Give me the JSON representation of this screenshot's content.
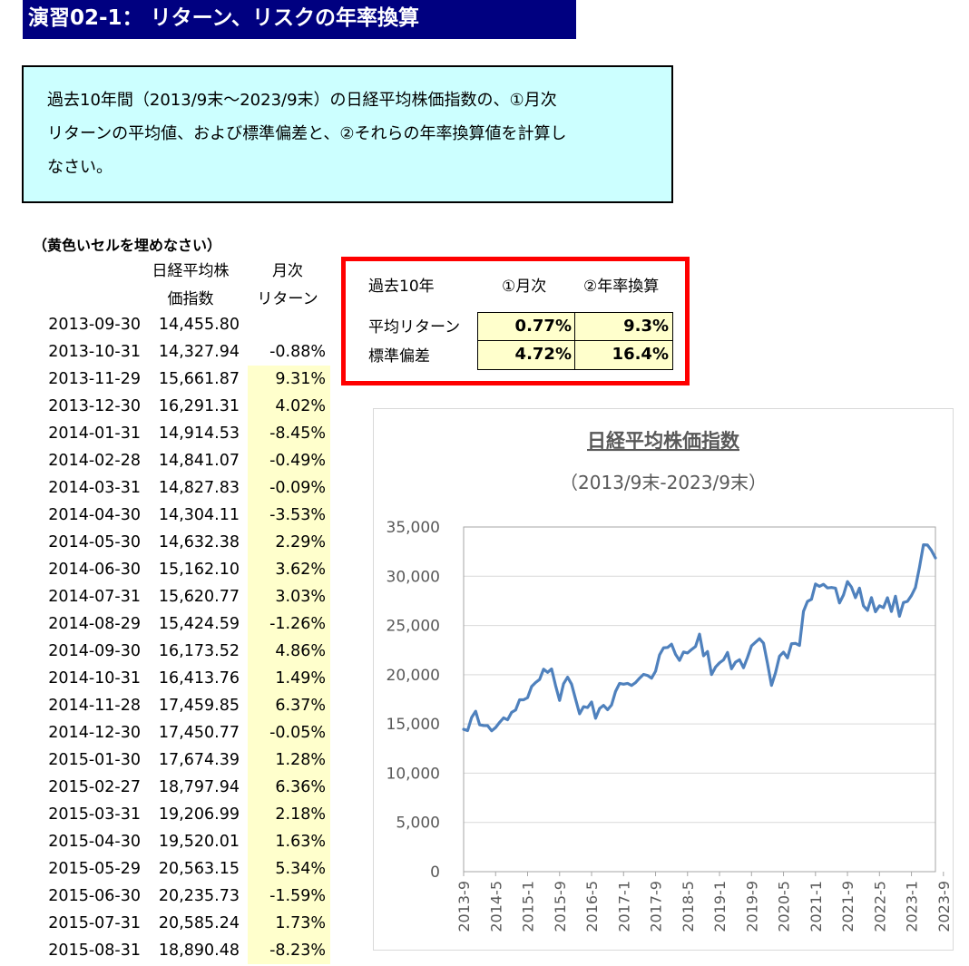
{
  "title": "演習02-1： リターン、リスクの年率換算",
  "instruction": {
    "line1": "過去10年間（2013/9末～2023/9末）の日経平均株価指数の、①月次",
    "line2": "リターンの平均値、および標準偏差と、②それらの年率換算値を計算し",
    "line3": "なさい。"
  },
  "note": "（黄色いセルを埋めなさい）",
  "table": {
    "header_price_1": "日経平均株",
    "header_price_2": "価指数",
    "header_return_1": "月次",
    "header_return_2": "リターン",
    "rows": [
      {
        "date": "2013-09-30",
        "price": "14,455.80",
        "ret": ""
      },
      {
        "date": "2013-10-31",
        "price": "14,327.94",
        "ret": "-0.88%"
      },
      {
        "date": "2013-11-29",
        "price": "15,661.87",
        "ret": "9.31%"
      },
      {
        "date": "2013-12-30",
        "price": "16,291.31",
        "ret": "4.02%"
      },
      {
        "date": "2014-01-31",
        "price": "14,914.53",
        "ret": "-8.45%"
      },
      {
        "date": "2014-02-28",
        "price": "14,841.07",
        "ret": "-0.49%"
      },
      {
        "date": "2014-03-31",
        "price": "14,827.83",
        "ret": "-0.09%"
      },
      {
        "date": "2014-04-30",
        "price": "14,304.11",
        "ret": "-3.53%"
      },
      {
        "date": "2014-05-30",
        "price": "14,632.38",
        "ret": "2.29%"
      },
      {
        "date": "2014-06-30",
        "price": "15,162.10",
        "ret": "3.62%"
      },
      {
        "date": "2014-07-31",
        "price": "15,620.77",
        "ret": "3.03%"
      },
      {
        "date": "2014-08-29",
        "price": "15,424.59",
        "ret": "-1.26%"
      },
      {
        "date": "2014-09-30",
        "price": "16,173.52",
        "ret": "4.86%"
      },
      {
        "date": "2014-10-31",
        "price": "16,413.76",
        "ret": "1.49%"
      },
      {
        "date": "2014-11-28",
        "price": "17,459.85",
        "ret": "6.37%"
      },
      {
        "date": "2014-12-30",
        "price": "17,450.77",
        "ret": "-0.05%"
      },
      {
        "date": "2015-01-30",
        "price": "17,674.39",
        "ret": "1.28%"
      },
      {
        "date": "2015-02-27",
        "price": "18,797.94",
        "ret": "6.36%"
      },
      {
        "date": "2015-03-31",
        "price": "19,206.99",
        "ret": "2.18%"
      },
      {
        "date": "2015-04-30",
        "price": "19,520.01",
        "ret": "1.63%"
      },
      {
        "date": "2015-05-29",
        "price": "20,563.15",
        "ret": "5.34%"
      },
      {
        "date": "2015-06-30",
        "price": "20,235.73",
        "ret": "-1.59%"
      },
      {
        "date": "2015-07-31",
        "price": "20,585.24",
        "ret": "1.73%"
      },
      {
        "date": "2015-08-31",
        "price": "18,890.48",
        "ret": "-8.23%"
      }
    ]
  },
  "summary": {
    "corner": "過去10年",
    "col_monthly": "①月次",
    "col_annual": "②年率換算",
    "row_return": "平均リターン",
    "row_std": "標準偏差",
    "return_monthly": "0.77%",
    "return_annual": "9.3%",
    "std_monthly": "4.72%",
    "std_annual": "16.4%"
  },
  "chart_data": {
    "type": "line",
    "title": "日経平均株価指数",
    "subtitle": "（2013/9末-2023/9末）",
    "ylim": [
      0,
      35000
    ],
    "y_ticks": [
      "0",
      "5,000",
      "10,000",
      "15,000",
      "20,000",
      "25,000",
      "30,000",
      "35,000"
    ],
    "x_tick_labels": [
      "2013-9",
      "2014-5",
      "2015-1",
      "2015-9",
      "2016-5",
      "2017-1",
      "2017-9",
      "2018-5",
      "2019-1",
      "2019-9",
      "2020-5",
      "2021-1",
      "2021-9",
      "2022-5",
      "2023-1",
      "2023-9"
    ],
    "series_color": "#4f81bd",
    "series": [
      {
        "name": "",
        "x_start": "2013-09",
        "x_end": "2023-09",
        "values": [
          14456,
          14328,
          15662,
          16291,
          14915,
          14841,
          14828,
          14304,
          14632,
          15162,
          15621,
          15425,
          16174,
          16414,
          17460,
          17451,
          17674,
          18798,
          19207,
          19520,
          20563,
          20236,
          20585,
          18890,
          17388,
          19083,
          19747,
          19034,
          17518,
          16027,
          16758,
          16666,
          17235,
          15576,
          16569,
          16887,
          16450,
          16926,
          18308,
          19114,
          19041,
          19119,
          18909,
          19197,
          19651,
          20033,
          19925,
          19646,
          20356,
          22012,
          22725,
          22765,
          23098,
          22068,
          21454,
          22305,
          22202,
          22554,
          22865,
          24120,
          21920,
          22351,
          20015,
          20773,
          21206,
          21509,
          22259,
          20601,
          21276,
          21522,
          20704,
          21756,
          22927,
          23294,
          23656,
          23205,
          21143,
          18917,
          20193,
          21878,
          22288,
          21710,
          23140,
          23185,
          22977,
          26434,
          27444,
          27663,
          29210,
          28966,
          29179,
          28813,
          28860,
          28792,
          27284,
          28090,
          29453,
          28893,
          27822,
          28792,
          27002,
          26527,
          27821,
          26393,
          27001,
          26804,
          27815,
          26423,
          27968,
          25937,
          27327,
          27446,
          28041,
          28856,
          30888,
          33189,
          33172,
          32619,
          31857
        ]
      }
    ]
  }
}
